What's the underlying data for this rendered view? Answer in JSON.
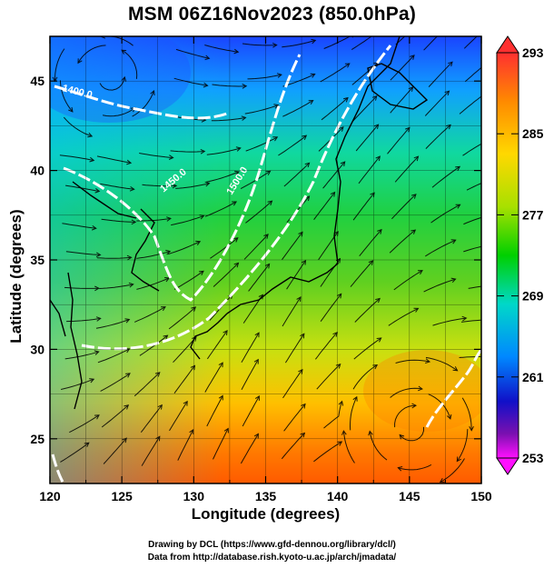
{
  "title": "MSM 06Z16Nov2023 (850.0hPa)",
  "x_axis": {
    "label": "Longitude (degrees)",
    "ticks": [
      "120",
      "125",
      "130",
      "135",
      "140",
      "145",
      "150"
    ]
  },
  "y_axis": {
    "label": "Latitude  (degrees)",
    "ticks": [
      "25",
      "30",
      "35",
      "40",
      "45"
    ]
  },
  "colorbar": {
    "ticks": [
      "293",
      "285",
      "277",
      "269",
      "261",
      "253"
    ],
    "colors": [
      "#ff2a2a",
      "#ff8000",
      "#ffd000",
      "#a0e000",
      "#00d000",
      "#00d0d0",
      "#0090ff",
      "#1010d0",
      "#6010b0",
      "#ff00ff"
    ]
  },
  "contours": [
    {
      "label": "1400.0"
    },
    {
      "label": "1450.0"
    },
    {
      "label": "1500.0"
    }
  ],
  "credits": {
    "line1": "Drawing by DCL (https://www.gfd-dennou.org/library/dcl/)",
    "line2": "Data from http://database.rish.kyoto-u.ac.jp/arch/jmadata/"
  },
  "chart_data": {
    "type": "heatmap",
    "title": "MSM 06Z16Nov2023 (850.0hPa)",
    "xlabel": "Longitude (degrees)",
    "ylabel": "Latitude  (degrees)",
    "xlim": [
      120,
      150
    ],
    "ylim": [
      22.5,
      47.5
    ],
    "x_ticks": [
      120,
      125,
      130,
      135,
      140,
      145,
      150
    ],
    "y_ticks": [
      25,
      30,
      35,
      40,
      45
    ],
    "colorbar": {
      "min": 253,
      "max": 293,
      "ticks": [
        293,
        285,
        277,
        269,
        261,
        253
      ]
    },
    "overlays": [
      "streamlines",
      "geopotential height contours",
      "coastlines",
      "grid"
    ]
  }
}
